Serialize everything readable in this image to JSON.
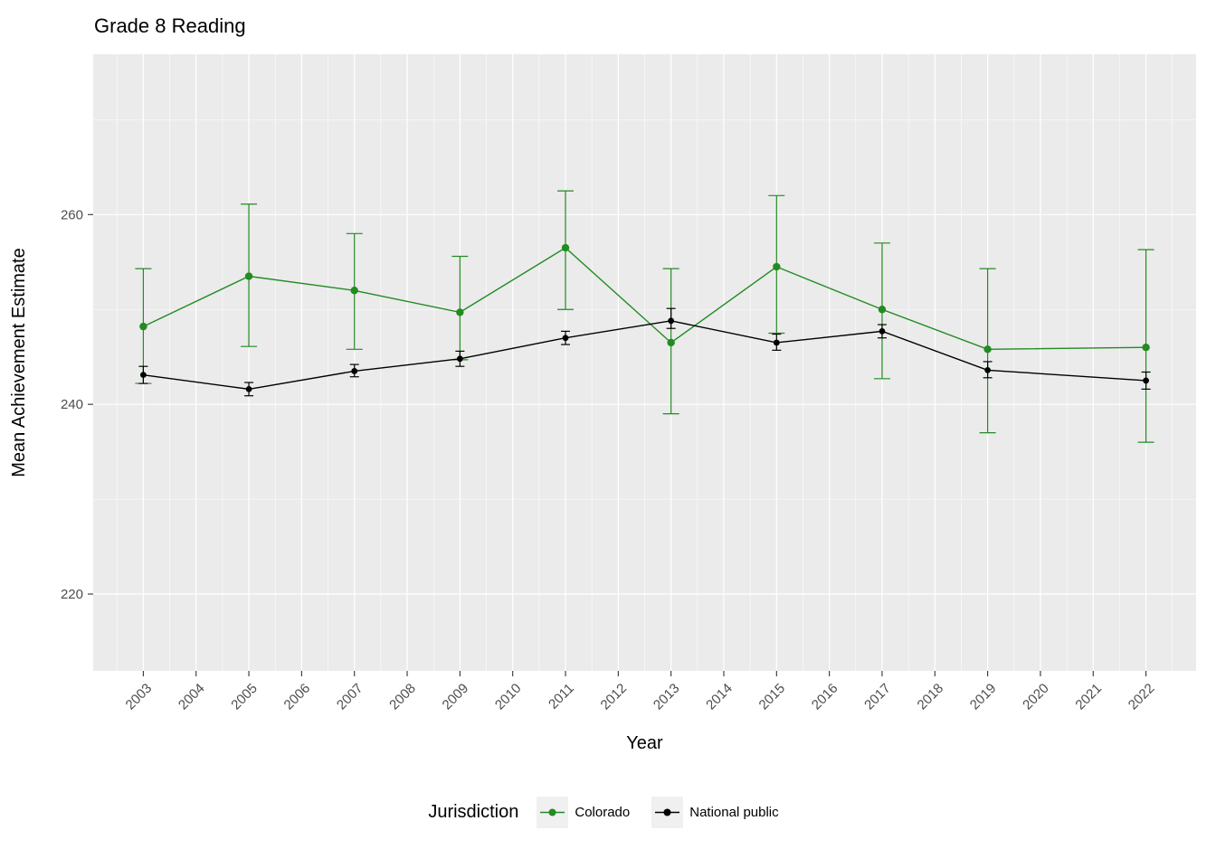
{
  "title": "Grade 8 Reading",
  "legend": {
    "title": "Jurisdiction",
    "items": [
      {
        "label": "Colorado",
        "color": "#228B22"
      },
      {
        "label": "National public",
        "color": "#000000"
      }
    ]
  },
  "chart_data": {
    "type": "line",
    "title": "Grade 8 Reading",
    "xlabel": "Year",
    "ylabel": "Mean Achievement Estimate",
    "error_bars": true,
    "x": [
      2003,
      2005,
      2007,
      2009,
      2011,
      2013,
      2015,
      2017,
      2019,
      2022
    ],
    "series": [
      {
        "name": "Colorado",
        "color": "#228B22",
        "mean": [
          248.2,
          253.5,
          252.0,
          249.7,
          256.5,
          246.5,
          254.5,
          250.0,
          245.8,
          246.0
        ],
        "lower": [
          242.2,
          246.1,
          245.8,
          244.7,
          250.0,
          239.0,
          247.5,
          242.7,
          237.0,
          236.0
        ],
        "upper": [
          254.3,
          261.1,
          258.0,
          255.6,
          262.5,
          254.3,
          262.0,
          257.0,
          254.3,
          256.3
        ]
      },
      {
        "name": "National public",
        "color": "#000000",
        "mean": [
          243.1,
          241.6,
          243.5,
          244.8,
          247.0,
          248.8,
          246.5,
          247.7,
          243.6,
          242.5
        ],
        "lower": [
          242.2,
          240.9,
          242.9,
          244.0,
          246.3,
          248.0,
          245.7,
          247.0,
          242.8,
          241.6
        ],
        "upper": [
          244.0,
          242.3,
          244.2,
          245.6,
          247.7,
          250.1,
          247.4,
          248.4,
          244.5,
          243.4
        ]
      }
    ],
    "axes": {
      "x_ticks": [
        2003,
        2004,
        2005,
        2006,
        2007,
        2008,
        2009,
        2010,
        2011,
        2012,
        2013,
        2014,
        2015,
        2016,
        2017,
        2018,
        2019,
        2020,
        2021,
        2022
      ],
      "y_ticks": [
        220,
        240,
        260
      ],
      "y_minor_ticks": [
        230,
        250,
        270
      ],
      "x_domain": [
        2002.05,
        2022.95
      ],
      "y_domain": [
        211.9,
        276.9
      ],
      "grid": true,
      "legend_position": "bottom"
    },
    "panel_background": "#EBEBEB",
    "gridline_color": "#FFFFFF",
    "axis_text_color": "#4D4D4D",
    "tick_color": "#333333"
  }
}
